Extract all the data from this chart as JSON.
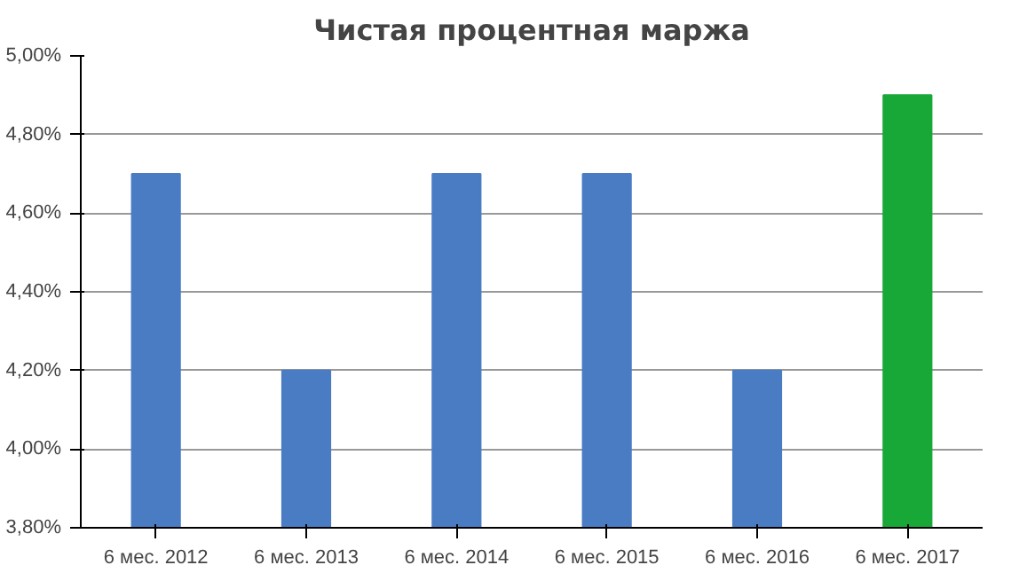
{
  "chart_data": {
    "type": "bar",
    "title": "Чистая процентная маржа",
    "categories": [
      "6 мес. 2012",
      "6 мес. 2013",
      "6 мес. 2014",
      "6 мес. 2015",
      "6 мес. 2016",
      "6 мес. 2017"
    ],
    "values": [
      4.7,
      4.2,
      4.7,
      4.7,
      4.2,
      4.9
    ],
    "colors": [
      "#4a7cc4",
      "#4a7cc4",
      "#4a7cc4",
      "#4a7cc4",
      "#4a7cc4",
      "#17a838"
    ],
    "ylim": [
      3.8,
      5.0
    ],
    "yticks": [
      {
        "value": 3.8,
        "label": "3,80%"
      },
      {
        "value": 4.0,
        "label": "4,00%"
      },
      {
        "value": 4.2,
        "label": "4,20%"
      },
      {
        "value": 4.4,
        "label": "4,40%"
      },
      {
        "value": 4.6,
        "label": "4,60%"
      },
      {
        "value": 4.8,
        "label": "4,80%"
      },
      {
        "value": 5.0,
        "label": "5,00%"
      }
    ],
    "grid": "y"
  }
}
